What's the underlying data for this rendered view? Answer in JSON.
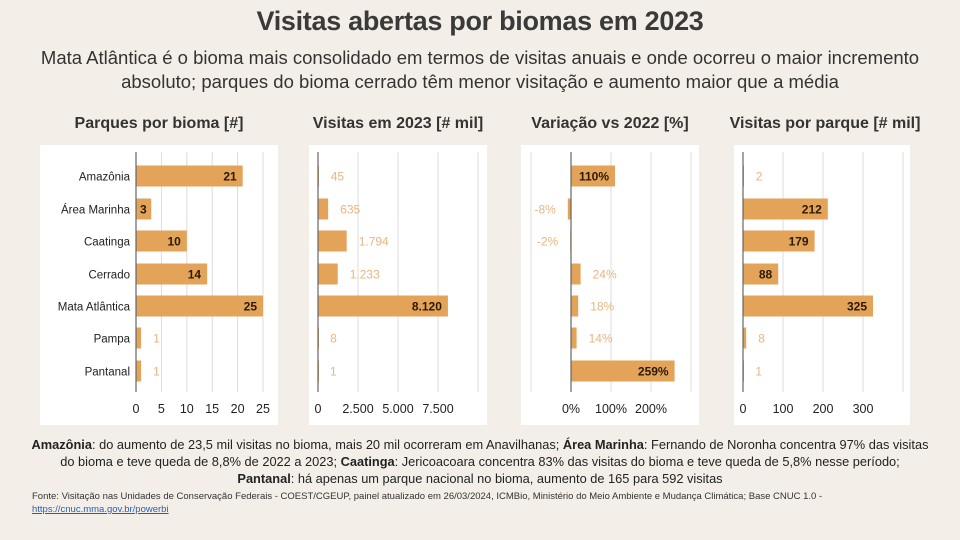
{
  "title": "Visitas abertas por biomas em 2023",
  "subtitle": "Mata Atlântica é o bioma mais consolidado em termos de visitas anuais e onde ocorreu o maior incremento absoluto; parques do bioma cerrado têm menor visitação e aumento maior que a média",
  "colors": {
    "bar": "#e3a358",
    "label_inside": "#2b1a08",
    "label_outside": "#e8b57f",
    "grid": "#dcdcdc",
    "axis": "#666666",
    "panel": "#ffffff"
  },
  "chart_data": [
    {
      "type": "bar",
      "title": "Parques por bioma [#]",
      "categories": [
        "Amazônia",
        "Área Marinha",
        "Caatinga",
        "Cerrado",
        "Mata Atlântica",
        "Pampa",
        "Pantanal"
      ],
      "values": [
        21,
        3,
        10,
        14,
        25,
        1,
        1
      ],
      "labels": [
        "21",
        "3",
        "10",
        "14",
        "25",
        "1",
        "1"
      ],
      "xlim": [
        0,
        25
      ],
      "ticks": [
        0,
        5,
        10,
        15,
        20,
        25
      ],
      "tick_labels": [
        "0",
        "5",
        "10",
        "15",
        "20",
        "25"
      ],
      "grid": true
    },
    {
      "type": "bar",
      "title": "Visitas em 2023 [# mil]",
      "categories": [
        "Amazônia",
        "Área Marinha",
        "Caatinga",
        "Cerrado",
        "Mata Atlântica",
        "Pampa",
        "Pantanal"
      ],
      "values": [
        45,
        635,
        1794,
        1233,
        8120,
        8,
        1
      ],
      "labels": [
        "45",
        "635",
        "1.794",
        "1.233",
        "8.120",
        "8",
        "1"
      ],
      "xlim": [
        0,
        10000
      ],
      "ticks": [
        0,
        2500,
        5000,
        7500,
        10000
      ],
      "tick_labels": [
        "0",
        "2.500",
        "5.000",
        "7.500",
        ""
      ],
      "grid": true
    },
    {
      "type": "bar",
      "title": "Variação vs 2022 [%]",
      "categories": [
        "Amazônia",
        "Área Marinha",
        "Caatinga",
        "Cerrado",
        "Mata Atlântica",
        "Pampa",
        "Pantanal"
      ],
      "values": [
        110,
        -8,
        -2,
        24,
        18,
        14,
        259
      ],
      "labels": [
        "110%",
        "-8%",
        "-2%",
        "24%",
        "18%",
        "14%",
        "259%"
      ],
      "xlim": [
        -100,
        300
      ],
      "ticks": [
        -100,
        0,
        100,
        200,
        300
      ],
      "tick_labels": [
        "",
        "0%",
        "100%",
        "200%",
        ""
      ],
      "grid": true
    },
    {
      "type": "bar",
      "title": "Visitas por parque [# mil]",
      "categories": [
        "Amazônia",
        "Área Marinha",
        "Caatinga",
        "Cerrado",
        "Mata Atlântica",
        "Pampa",
        "Pantanal"
      ],
      "values": [
        2,
        212,
        179,
        88,
        325,
        8,
        1
      ],
      "labels": [
        "2",
        "212",
        "179",
        "88",
        "325",
        "8",
        "1"
      ],
      "xlim": [
        0,
        400
      ],
      "ticks": [
        0,
        100,
        200,
        300,
        400
      ],
      "tick_labels": [
        "0",
        "100",
        "200",
        "300",
        ""
      ],
      "grid": true
    }
  ],
  "notes": {
    "p1_b": "Amazônia",
    "p1": ": do aumento de 23,5 mil visitas no bioma, mais 20 mil ocorreram em Anavilhanas; ",
    "p2_b": "Área Marinha",
    "p2": ": Fernando de Noronha concentra 97% das visitas do bioma e teve queda de 8,8% de 2022 a 2023; ",
    "p3_b": "Caatinga",
    "p3": ": Jericoacoara concentra 83% das visitas do bioma e teve queda de 5,8% nesse período; ",
    "p4_b": "Pantanal",
    "p4": ": há apenas um parque nacional no bioma, aumento de 165 para 592 visitas"
  },
  "source": {
    "text": "Fonte: Visitação nas Unidades de Conservação Federais - COEST/CGEUP, painel atualizado em 26/03/2024, ICMBio, Ministério do Meio Ambiente e Mudança Climática; Base CNUC 1.0 - ",
    "link": "https://cnuc.mma.gov.br/powerbi"
  }
}
